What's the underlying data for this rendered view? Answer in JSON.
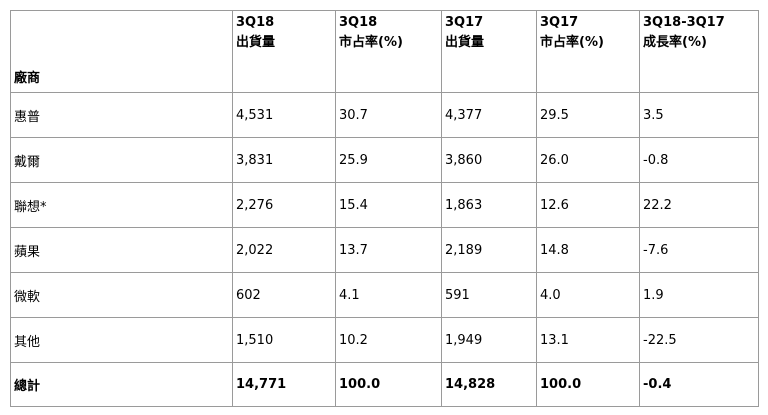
{
  "table": {
    "headers": [
      {
        "line1": "",
        "line2": "廠商"
      },
      {
        "line1": "3Q18",
        "line2": "出貨量"
      },
      {
        "line1": "3Q18",
        "line2": "市占率(%)"
      },
      {
        "line1": "3Q17",
        "line2": "出貨量"
      },
      {
        "line1": "3Q17",
        "line2": "市占率(%)"
      },
      {
        "line1": "3Q18-3Q17",
        "line2": "成長率(%)"
      }
    ],
    "rows": [
      {
        "vendor": "惠普",
        "ship_3q18": "4,531",
        "share_3q18": "30.7",
        "ship_3q17": "4,377",
        "share_3q17": "29.5",
        "growth": "3.5"
      },
      {
        "vendor": "戴爾",
        "ship_3q18": "3,831",
        "share_3q18": "25.9",
        "ship_3q17": "3,860",
        "share_3q17": "26.0",
        "growth": "-0.8"
      },
      {
        "vendor": "聯想*",
        "ship_3q18": "2,276",
        "share_3q18": "15.4",
        "ship_3q17": "1,863",
        "share_3q17": "12.6",
        "growth": "22.2"
      },
      {
        "vendor": "蘋果",
        "ship_3q18": "2,022",
        "share_3q18": "13.7",
        "ship_3q17": "2,189",
        "share_3q17": "14.8",
        "growth": "-7.6"
      },
      {
        "vendor": "微軟",
        "ship_3q18": "602",
        "share_3q18": "4.1",
        "ship_3q17": "591",
        "share_3q17": "4.0",
        "growth": "1.9"
      },
      {
        "vendor": "其他",
        "ship_3q18": "1,510",
        "share_3q18": "10.2",
        "ship_3q17": "1,949",
        "share_3q17": "13.1",
        "growth": "-22.5"
      }
    ],
    "total": {
      "vendor": "總計",
      "ship_3q18": "14,771",
      "share_3q18": "100.0",
      "ship_3q17": "14,828",
      "share_3q17": "100.0",
      "growth": "-0.4"
    }
  }
}
